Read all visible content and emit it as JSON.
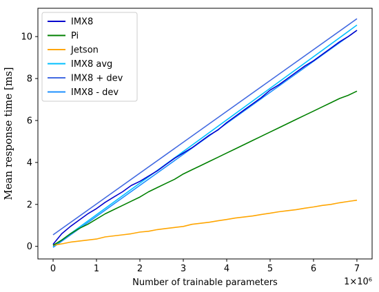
{
  "chart_data": {
    "type": "line",
    "xlabel": "Number of trainable parameters",
    "ylabel": "Mean response time [ms]",
    "x_offset_label": "1×10⁶",
    "x_scale": 1000000,
    "xlim": [
      -0.35,
      7.35
    ],
    "ylim": [
      -0.6,
      11.35
    ],
    "x_ticks": [
      0,
      1,
      2,
      3,
      4,
      5,
      6,
      7
    ],
    "y_ticks": [
      0,
      2,
      4,
      6,
      8,
      10
    ],
    "grid": false,
    "legend_position": "top-left",
    "series": [
      {
        "name": "IMX8",
        "color": "#0000cd",
        "x": [
          0,
          0.2,
          0.4,
          0.6,
          0.8,
          1.0,
          1.2,
          1.4,
          1.6,
          1.8,
          2.0,
          2.2,
          2.4,
          2.6,
          2.8,
          3.0,
          3.2,
          3.4,
          3.6,
          3.8,
          4.0,
          4.2,
          4.4,
          4.6,
          4.8,
          5.0,
          5.2,
          5.4,
          5.6,
          5.8,
          6.0,
          6.2,
          6.4,
          6.6,
          6.8,
          7.0
        ],
        "y": [
          0.1,
          0.6,
          0.95,
          1.25,
          1.55,
          1.8,
          2.1,
          2.35,
          2.6,
          2.9,
          3.1,
          3.35,
          3.6,
          3.9,
          4.2,
          4.45,
          4.7,
          5.0,
          5.3,
          5.55,
          5.9,
          6.2,
          6.5,
          6.8,
          7.1,
          7.45,
          7.7,
          8.0,
          8.3,
          8.6,
          8.85,
          9.15,
          9.45,
          9.75,
          10.0,
          10.3
        ]
      },
      {
        "name": "Pi",
        "color": "#008000",
        "x": [
          0,
          0.2,
          0.4,
          0.6,
          0.8,
          1.0,
          1.2,
          1.4,
          1.6,
          1.8,
          2.0,
          2.2,
          2.4,
          2.6,
          2.8,
          3.0,
          3.2,
          3.4,
          3.6,
          3.8,
          4.0,
          4.2,
          4.4,
          4.6,
          4.8,
          5.0,
          5.2,
          5.4,
          5.6,
          5.8,
          6.0,
          6.2,
          6.4,
          6.6,
          6.8,
          7.0
        ],
        "y": [
          0.05,
          0.3,
          0.6,
          0.85,
          1.05,
          1.3,
          1.55,
          1.75,
          1.95,
          2.15,
          2.35,
          2.6,
          2.8,
          3.0,
          3.2,
          3.45,
          3.65,
          3.85,
          4.05,
          4.25,
          4.45,
          4.65,
          4.85,
          5.05,
          5.25,
          5.45,
          5.65,
          5.85,
          6.05,
          6.25,
          6.45,
          6.65,
          6.85,
          7.05,
          7.2,
          7.4
        ]
      },
      {
        "name": "Jetson",
        "color": "#ffa500",
        "x": [
          0,
          0.2,
          0.4,
          0.6,
          0.8,
          1.0,
          1.2,
          1.4,
          1.6,
          1.8,
          2.0,
          2.2,
          2.4,
          2.6,
          2.8,
          3.0,
          3.2,
          3.4,
          3.6,
          3.8,
          4.0,
          4.2,
          4.4,
          4.6,
          4.8,
          5.0,
          5.2,
          5.4,
          5.6,
          5.8,
          6.0,
          6.2,
          6.4,
          6.6,
          6.8,
          7.0
        ],
        "y": [
          0.05,
          0.12,
          0.2,
          0.25,
          0.3,
          0.35,
          0.45,
          0.5,
          0.55,
          0.6,
          0.68,
          0.72,
          0.8,
          0.85,
          0.9,
          0.95,
          1.05,
          1.1,
          1.15,
          1.22,
          1.28,
          1.35,
          1.4,
          1.45,
          1.52,
          1.58,
          1.65,
          1.7,
          1.75,
          1.82,
          1.88,
          1.95,
          2.0,
          2.08,
          2.14,
          2.2
        ]
      },
      {
        "name": "IMX8 avg",
        "color": "#00bfff",
        "x": [
          0,
          7.0
        ],
        "y": [
          0.0,
          10.55
        ]
      },
      {
        "name": "IMX8 + dev",
        "color": "#4169e1",
        "x": [
          0,
          7.0
        ],
        "y": [
          0.55,
          10.85
        ]
      },
      {
        "name": "IMX8 - dev",
        "color": "#1e90ff",
        "x": [
          0,
          7.0
        ],
        "y": [
          -0.05,
          10.3
        ]
      }
    ]
  }
}
